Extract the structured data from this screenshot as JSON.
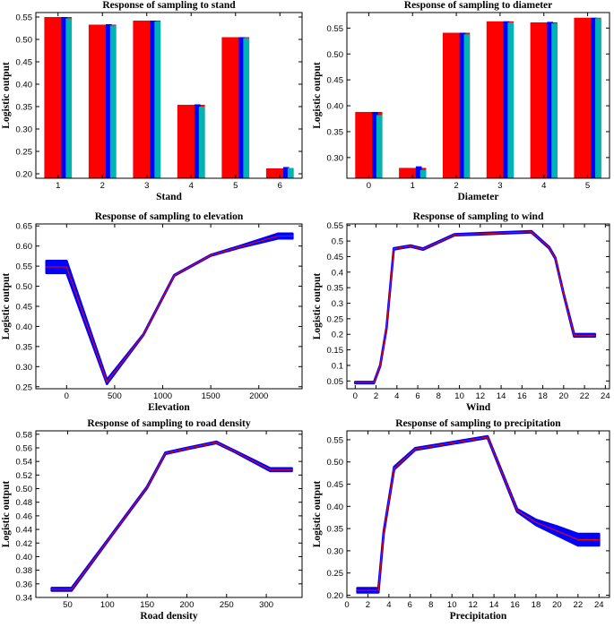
{
  "chart_data": [
    {
      "id": "stand",
      "type": "bar",
      "title": "Response of sampling to stand",
      "xlabel": "Stand",
      "ylabel": "Logistic output",
      "categories": [
        "1",
        "2",
        "3",
        "4",
        "5",
        "6"
      ],
      "series": [
        {
          "name": "red",
          "color": "#ff0000",
          "values": [
            0.55,
            0.533,
            0.542,
            0.354,
            0.505,
            0.212
          ]
        },
        {
          "name": "blue",
          "color": "#0000ff",
          "values": [
            0.55,
            0.534,
            0.542,
            0.355,
            0.505,
            0.215
          ]
        },
        {
          "name": "cyan",
          "color": "#00b4b4",
          "values": [
            0.547,
            0.531,
            0.54,
            0.35,
            0.503,
            0.213
          ]
        }
      ],
      "ylim": [
        0.19,
        0.56
      ],
      "yticks": [
        0.2,
        0.25,
        0.3,
        0.35,
        0.4,
        0.45,
        0.5,
        0.55
      ],
      "ytick_labels": [
        "0.20",
        "0.25",
        "0.30",
        "0.35",
        "0.40",
        "0.45",
        "0.50",
        "0.55"
      ]
    },
    {
      "id": "diameter",
      "type": "bar",
      "title": "Response of sampling to diameter",
      "xlabel": "Diameter",
      "ylabel": "Logistic output",
      "categories": [
        "0",
        "1",
        "2",
        "3",
        "4",
        "5"
      ],
      "series": [
        {
          "name": "red",
          "color": "#ff0000",
          "values": [
            0.388,
            0.28,
            0.541,
            0.563,
            0.561,
            0.57
          ]
        },
        {
          "name": "blue",
          "color": "#0000ff",
          "values": [
            0.388,
            0.283,
            0.541,
            0.563,
            0.562,
            0.57
          ]
        },
        {
          "name": "cyan",
          "color": "#00b4b4",
          "values": [
            0.382,
            0.276,
            0.538,
            0.561,
            0.559,
            0.569
          ]
        }
      ],
      "ylim": [
        0.26,
        0.58
      ],
      "yticks": [
        0.3,
        0.35,
        0.4,
        0.45,
        0.5,
        0.55
      ],
      "ytick_labels": [
        "0.30",
        "0.35",
        "0.40",
        "0.45",
        "0.50",
        "0.55"
      ]
    },
    {
      "id": "elevation",
      "type": "line",
      "title": "Response of sampling to elevation",
      "xlabel": "Elevation",
      "ylabel": "Logistic output",
      "x": [
        -210,
        0,
        420,
        800,
        1120,
        1500,
        1800,
        2200,
        2350
      ],
      "y": [
        0.548,
        0.548,
        0.262,
        0.38,
        0.527,
        0.577,
        0.598,
        0.625,
        0.625
      ],
      "band": [
        0.015,
        0.015,
        0.005,
        0.001,
        0.001,
        0.001,
        0.002,
        0.006,
        0.006
      ],
      "xlim": [
        -320,
        2450
      ],
      "ylim": [
        0.245,
        0.655
      ],
      "xticks": [
        0,
        500,
        1000,
        1500,
        2000
      ],
      "xtick_labels": [
        "0",
        "500",
        "1000",
        "1500",
        "2000"
      ],
      "yticks": [
        0.25,
        0.3,
        0.35,
        0.4,
        0.45,
        0.5,
        0.55,
        0.6,
        0.65
      ],
      "ytick_labels": [
        "0.25",
        "0.30",
        "0.35",
        "0.40",
        "0.45",
        "0.50",
        "0.55",
        "0.60",
        "0.65"
      ]
    },
    {
      "id": "wind",
      "type": "line",
      "title": "Response of sampling to wind",
      "xlabel": "Wind",
      "ylabel": "Logistic output",
      "x": [
        0,
        1.8,
        2.4,
        3.0,
        3.7,
        5.3,
        6.5,
        9.5,
        12.5,
        16.9,
        18.6,
        19.2,
        20.0,
        21.0,
        23.0
      ],
      "y": [
        0.045,
        0.045,
        0.1,
        0.22,
        0.475,
        0.484,
        0.474,
        0.52,
        0.524,
        0.53,
        0.479,
        0.445,
        0.33,
        0.197,
        0.197
      ],
      "band": [
        0.002,
        0.002,
        0.002,
        0.002,
        0.002,
        0.002,
        0.002,
        0.002,
        0.002,
        0.002,
        0.002,
        0.002,
        0.002,
        0.004,
        0.004
      ],
      "xlim": [
        -0.8,
        24.4
      ],
      "ylim": [
        0.025,
        0.555
      ],
      "xticks": [
        0,
        2,
        4,
        6,
        8,
        10,
        12,
        14,
        16,
        18,
        20,
        22,
        24
      ],
      "xtick_labels": [
        "0",
        "2",
        "4",
        "6",
        "8",
        "10",
        "12",
        "14",
        "16",
        "18",
        "20",
        "22",
        "24"
      ],
      "yticks": [
        0.05,
        0.1,
        0.15,
        0.2,
        0.25,
        0.3,
        0.35,
        0.4,
        0.45,
        0.5,
        0.55
      ],
      "ytick_labels": [
        "0.05",
        "0.1",
        "0.15",
        "0.2",
        "0.25",
        "0.3",
        "0.35",
        "0.4",
        "0.45",
        "0.5",
        "0.55"
      ]
    },
    {
      "id": "road",
      "type": "line",
      "title": "Response of sampling to road density",
      "xlabel": "Road density",
      "ylabel": "Logistic output",
      "x": [
        30,
        55,
        100,
        150,
        173,
        200,
        237,
        260,
        305,
        332
      ],
      "y": [
        0.352,
        0.352,
        0.423,
        0.502,
        0.552,
        0.559,
        0.568,
        0.555,
        0.528,
        0.528
      ],
      "band": [
        0.002,
        0.002,
        0.001,
        0.001,
        0.001,
        0.001,
        0.001,
        0.001,
        0.002,
        0.002
      ],
      "xlim": [
        10,
        345
      ],
      "ylim": [
        0.34,
        0.585
      ],
      "xticks": [
        50,
        100,
        150,
        200,
        250,
        300
      ],
      "xtick_labels": [
        "50",
        "100",
        "150",
        "200",
        "250",
        "300"
      ],
      "yticks": [
        0.34,
        0.36,
        0.38,
        0.4,
        0.42,
        0.44,
        0.46,
        0.48,
        0.5,
        0.52,
        0.54,
        0.56,
        0.58
      ],
      "ytick_labels": [
        "0.34",
        "0.36",
        "0.38",
        "0.40",
        "0.42",
        "0.44",
        "0.46",
        "0.48",
        "0.50",
        "0.52",
        "0.54",
        "0.56",
        "0.58"
      ]
    },
    {
      "id": "precip",
      "type": "line",
      "title": "Response of sampling to precipitation",
      "xlabel": "Precipitation",
      "ylabel": "Logistic output",
      "x": [
        1,
        3,
        3.5,
        4.5,
        6.5,
        13.4,
        16.2,
        18.0,
        20.0,
        22.0,
        24.0
      ],
      "y": [
        0.211,
        0.211,
        0.34,
        0.486,
        0.529,
        0.556,
        0.391,
        0.364,
        0.345,
        0.325,
        0.325
      ],
      "band": [
        0.005,
        0.005,
        0.003,
        0.003,
        0.002,
        0.002,
        0.003,
        0.006,
        0.01,
        0.013,
        0.013
      ],
      "xlim": [
        0,
        25
      ],
      "ylim": [
        0.195,
        0.57
      ],
      "xticks": [
        0,
        2,
        4,
        6,
        8,
        10,
        12,
        14,
        16,
        18,
        20,
        22,
        24
      ],
      "xtick_labels": [
        "0",
        "2",
        "4",
        "6",
        "8",
        "10",
        "12",
        "14",
        "16",
        "18",
        "20",
        "22",
        "24"
      ],
      "yticks": [
        0.2,
        0.25,
        0.3,
        0.35,
        0.4,
        0.45,
        0.5,
        0.55
      ],
      "ytick_labels": [
        "0.20",
        "0.25",
        "0.30",
        "0.35",
        "0.40",
        "0.45",
        "0.50",
        "0.55"
      ]
    }
  ]
}
